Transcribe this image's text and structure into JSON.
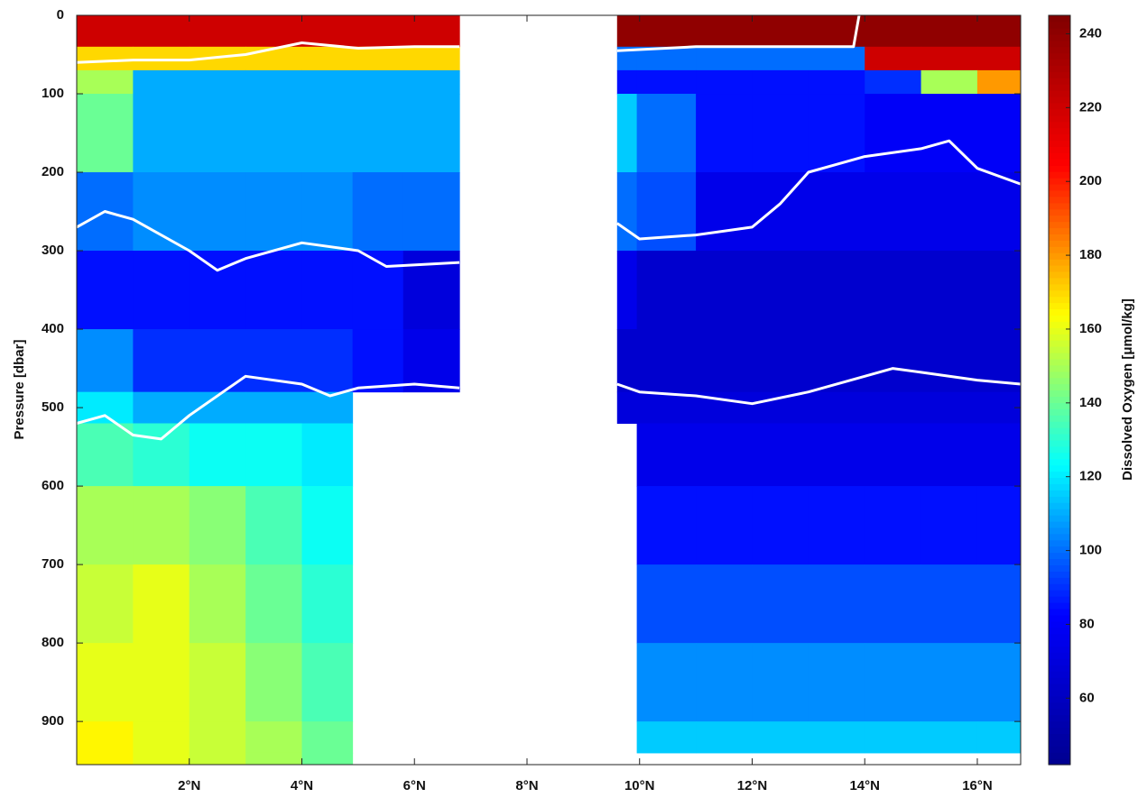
{
  "chart_data": {
    "type": "heatmap",
    "ylabel": "Pressure [dbar]",
    "x_edges": [
      0,
      1,
      2,
      3,
      4,
      4.9,
      5.8,
      6.8,
      9.6,
      9.95,
      11,
      12,
      13,
      14,
      15,
      16,
      16.77
    ],
    "y_edges": [
      0,
      40,
      70,
      100,
      200,
      300,
      400,
      480,
      520,
      600,
      700,
      800,
      900,
      940,
      955
    ],
    "values": [
      [
        220,
        220,
        220,
        220,
        220,
        220,
        220,
        null,
        240,
        240,
        240,
        240,
        240,
        240,
        240,
        240
      ],
      [
        170,
        170,
        170,
        170,
        170,
        170,
        170,
        null,
        100,
        100,
        100,
        100,
        100,
        220,
        220,
        220
      ],
      [
        150,
        110,
        110,
        110,
        110,
        110,
        110,
        null,
        85,
        85,
        85,
        85,
        85,
        90,
        150,
        180
      ],
      [
        140,
        110,
        110,
        110,
        110,
        110,
        110,
        null,
        115,
        100,
        85,
        85,
        85,
        80,
        80,
        80
      ],
      [
        100,
        105,
        105,
        105,
        105,
        100,
        100,
        null,
        100,
        95,
        75,
        75,
        75,
        75,
        75,
        75
      ],
      [
        85,
        85,
        85,
        85,
        85,
        85,
        70,
        null,
        75,
        65,
        65,
        65,
        65,
        65,
        65,
        65
      ],
      [
        105,
        90,
        90,
        90,
        90,
        85,
        75,
        null,
        65,
        65,
        65,
        65,
        65,
        65,
        65,
        65
      ],
      [
        120,
        110,
        110,
        110,
        110,
        null,
        null,
        null,
        70,
        70,
        70,
        70,
        70,
        70,
        70,
        70
      ],
      [
        135,
        130,
        125,
        125,
        120,
        null,
        null,
        null,
        null,
        75,
        75,
        75,
        75,
        75,
        75,
        75
      ],
      [
        150,
        150,
        145,
        135,
        125,
        null,
        null,
        null,
        null,
        85,
        85,
        85,
        85,
        85,
        85,
        85
      ],
      [
        155,
        160,
        150,
        140,
        130,
        null,
        null,
        null,
        null,
        95,
        95,
        95,
        95,
        95,
        95,
        95
      ],
      [
        160,
        160,
        155,
        145,
        135,
        null,
        null,
        null,
        null,
        105,
        105,
        105,
        105,
        105,
        105,
        105
      ],
      [
        165,
        160,
        155,
        150,
        140,
        null,
        null,
        null,
        null,
        115,
        115,
        115,
        115,
        115,
        115,
        115
      ],
      [
        165,
        160,
        155,
        150,
        140,
        null,
        null,
        null,
        null,
        null,
        null,
        null,
        null,
        null,
        null,
        null
      ]
    ],
    "xlim": [
      0,
      16.77
    ],
    "ylim": [
      0,
      955
    ],
    "y_inverted": true,
    "xticks": [
      {
        "value": 2,
        "label": "2°N"
      },
      {
        "value": 4,
        "label": "4°N"
      },
      {
        "value": 6,
        "label": "6°N"
      },
      {
        "value": 8,
        "label": "8°N"
      },
      {
        "value": 10,
        "label": "10°N"
      },
      {
        "value": 12,
        "label": "12°N"
      },
      {
        "value": 14,
        "label": "14°N"
      },
      {
        "value": 16,
        "label": "16°N"
      }
    ],
    "yticks": [
      0,
      100,
      200,
      300,
      400,
      500,
      600,
      700,
      800,
      900
    ],
    "colorbar": {
      "label": "Dissolved Oxygen [μmol/kg]",
      "lim": [
        42,
        245
      ],
      "ticks": [
        60,
        80,
        100,
        120,
        140,
        160,
        180,
        200,
        220,
        240
      ],
      "colormap": [
        "#00008f",
        "#0000ff",
        "#00ffff",
        "#ffff00",
        "#ff0000",
        "#800000"
      ]
    },
    "contours": [
      {
        "color": "#ffffff",
        "x": [
          0,
          1,
          2,
          3,
          4,
          5,
          6,
          6.8,
          7,
          9.6,
          11,
          12,
          13,
          13.8,
          13.9
        ],
        "y": [
          60,
          57,
          57,
          50,
          35,
          42,
          40,
          40,
          null,
          45,
          40,
          40,
          40,
          40,
          0
        ]
      },
      {
        "color": "#ffffff",
        "x": [
          0,
          0.5,
          1,
          2,
          2.5,
          3,
          4,
          5,
          5.5,
          6.8,
          7,
          9.6,
          10,
          11,
          12,
          12.5,
          13,
          13.5,
          14,
          15,
          15.5,
          16,
          16.77
        ],
        "y": [
          270,
          250,
          260,
          300,
          325,
          310,
          290,
          300,
          320,
          315,
          null,
          265,
          285,
          280,
          270,
          240,
          200,
          190,
          180,
          170,
          160,
          195,
          215
        ]
      },
      {
        "color": "#ffffff",
        "x": [
          0,
          0.5,
          1,
          1.5,
          2,
          3,
          4,
          4.5,
          5,
          6,
          6.8,
          7,
          9.6,
          10,
          11,
          12,
          13,
          14,
          14.5,
          15,
          16,
          16.77
        ],
        "y": [
          520,
          510,
          535,
          540,
          510,
          460,
          470,
          485,
          475,
          470,
          475,
          null,
          470,
          480,
          485,
          495,
          480,
          460,
          450,
          455,
          465,
          470
        ]
      }
    ]
  }
}
